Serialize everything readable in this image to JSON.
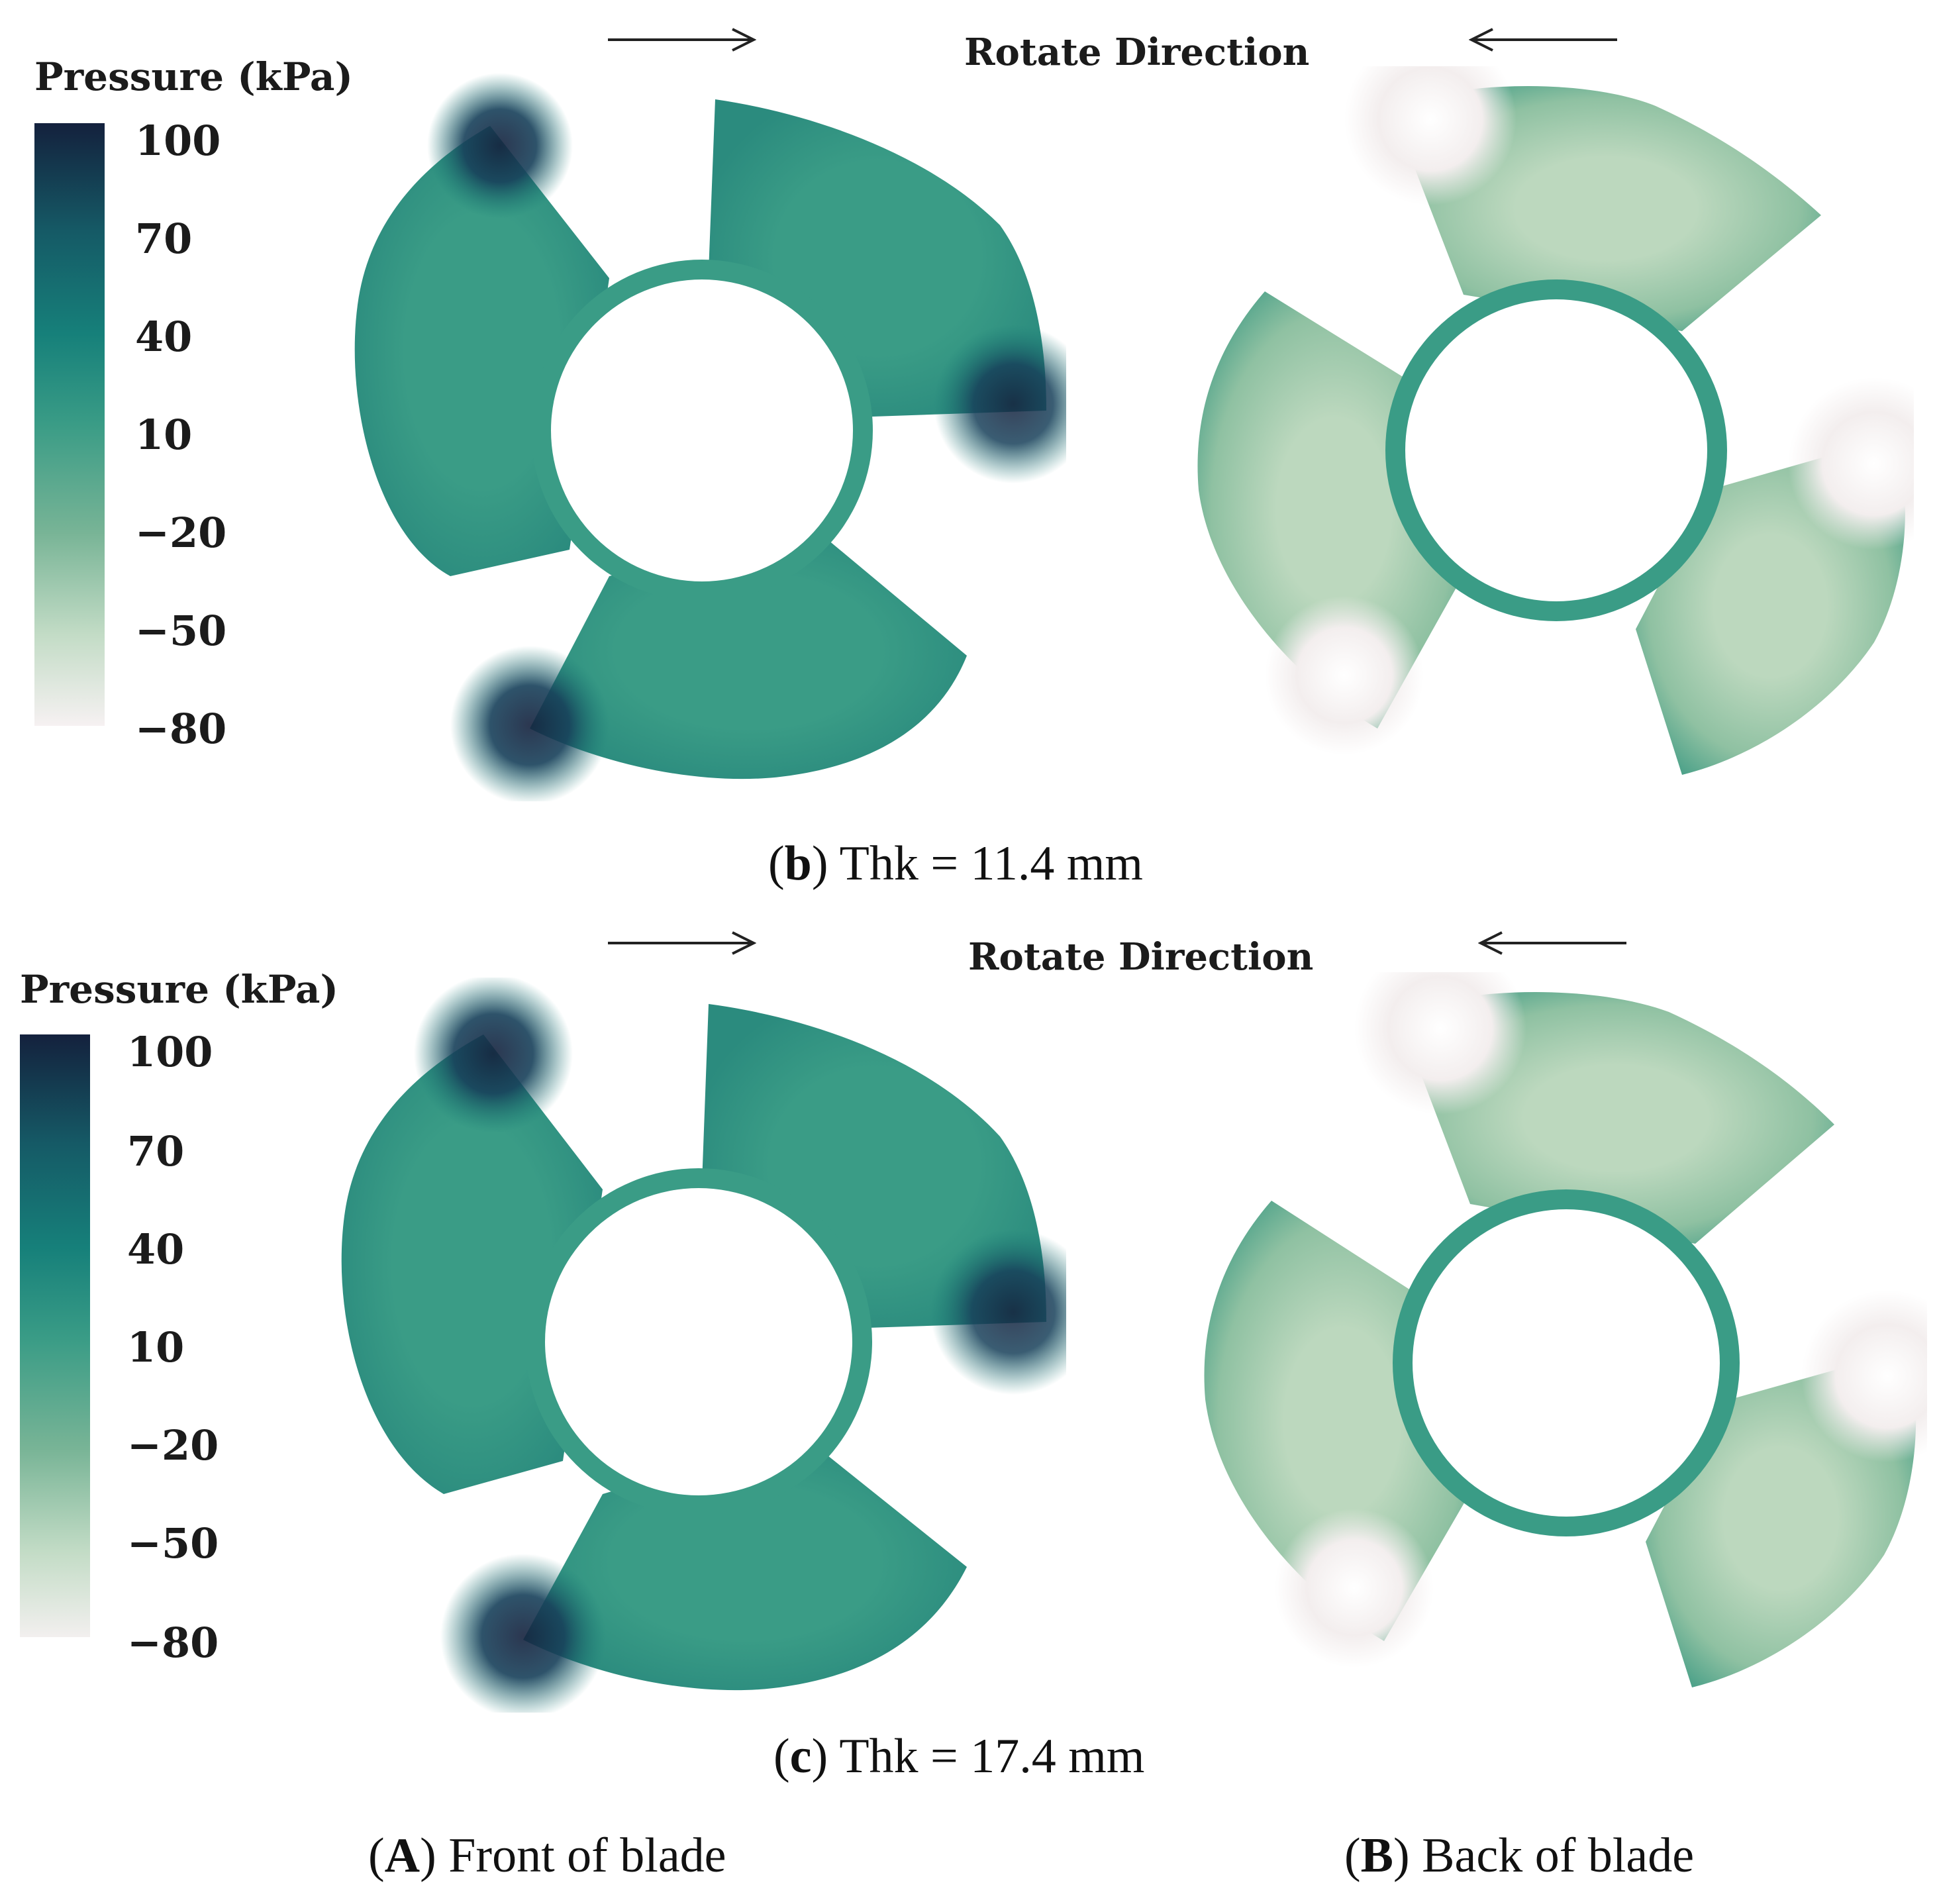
{
  "panels": [
    {
      "colorbar": {
        "title": "Pressure (kPa)",
        "ticks": [
          "100",
          "70",
          "40",
          "10",
          "−20",
          "−50",
          "−80"
        ]
      },
      "rotate_label": "Rotate Direction",
      "caption": {
        "letter": "b",
        "text": "Thk = 11.4 mm"
      }
    },
    {
      "colorbar": {
        "title": "Pressure (kPa)",
        "ticks": [
          "100",
          "70",
          "40",
          "10",
          "−20",
          "−50",
          "−80"
        ]
      },
      "rotate_label": "Rotate Direction",
      "caption": {
        "letter": "c",
        "text": "Thk = 17.4 mm"
      }
    }
  ],
  "column_labels": [
    {
      "letter": "A",
      "text": "Front of blade"
    },
    {
      "letter": "B",
      "text": "Back of blade"
    }
  ],
  "colors": {
    "scale_max": "#14213d",
    "scale_high": "#167a74",
    "scale_mid": "#3a9c86",
    "scale_low": "#a9cdb0",
    "scale_min": "#f5f1f1",
    "front_blade": "#379884",
    "back_blade": "#8dbf9f"
  }
}
